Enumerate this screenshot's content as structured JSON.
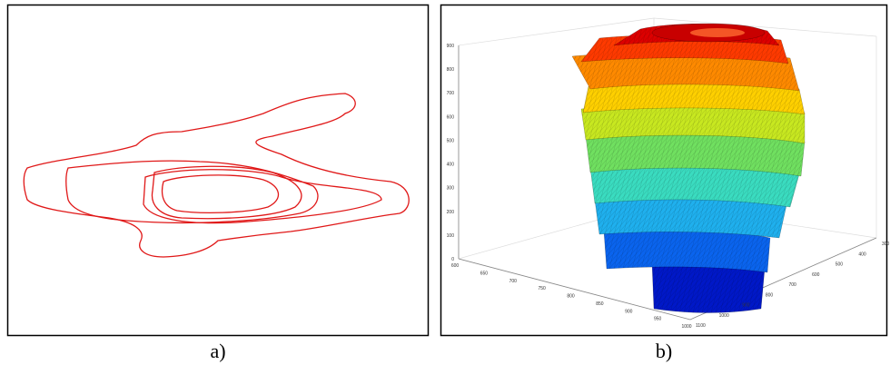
{
  "captions": [
    "a)",
    "b)"
  ],
  "panel_b": {
    "z_ticks": [
      "0",
      "100",
      "200",
      "300",
      "400",
      "500",
      "600",
      "700",
      "800",
      "900"
    ],
    "x_ticks": [
      "600",
      "650",
      "700",
      "750",
      "800",
      "850",
      "900",
      "950",
      "1000"
    ],
    "y_ticks": [
      "1100",
      "1000",
      "900",
      "800",
      "700",
      "600",
      "500",
      "400",
      "300"
    ]
  }
}
